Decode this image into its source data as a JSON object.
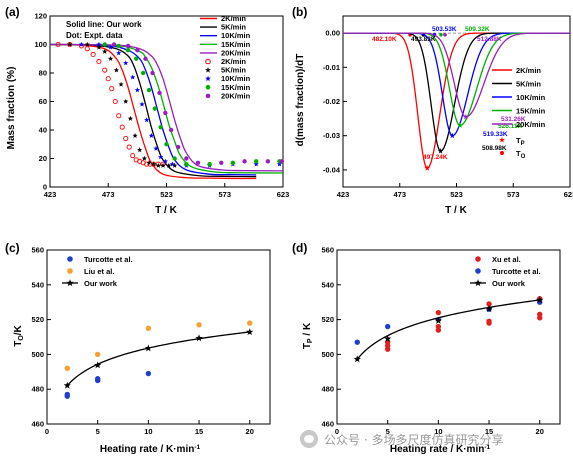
{
  "panels": {
    "a": {
      "letter": "(a)",
      "ylabel": "Mass fraction (%)",
      "xlabel": "T / K",
      "note_line1": "Solid line: Our work",
      "note_line2": "Dot: Expt. data",
      "legend": [
        "2K/min",
        "5K/min",
        "10K/min",
        "15K/min",
        "20K/min",
        "2K/min",
        "5K/min",
        "10K/min",
        "15K/min",
        "20K/min"
      ]
    },
    "b": {
      "letter": "(b)",
      "ylabel": "d(mass fraction)/dT",
      "xlabel": "T / K",
      "legend": [
        "2K/min",
        "5K/min",
        "10K/min",
        "15K/min",
        "20K/min"
      ],
      "legend_tp": "T",
      "legend_tp_sub": "P",
      "legend_to": "T",
      "legend_to_sub": "O",
      "annotations_to": [
        "482.10K",
        "493.83K",
        "503.53K",
        "509.32K",
        "512.88K"
      ],
      "annotations_tp": [
        "497.24K",
        "508.98K",
        "519.33K",
        "526.11K",
        "531.26K"
      ]
    },
    "c": {
      "letter": "(c)",
      "ylabel": "T",
      "ylabel_sub": "O",
      "ylabel_unit": "/K",
      "xlabel": "Heating rate / K·min",
      "xlabel_sup": "-1",
      "legend": [
        "Turcotte et al.",
        "Liu et al.",
        "Our work"
      ]
    },
    "d": {
      "letter": "(d)",
      "ylabel": "T",
      "ylabel_sub": "P",
      "ylabel_unit": " / K",
      "xlabel": "Heating rate / K·min",
      "xlabel_sup": "-1",
      "legend": [
        "Xu et al.",
        "Turcotte et al.",
        "Our work"
      ]
    }
  },
  "colors": {
    "2K": "#ff0000",
    "5K": "#000000",
    "10K": "#0000ff",
    "15K": "#00b000",
    "20K": "#9b1fbf",
    "blue_marker": "#1f3fd0",
    "orange_marker": "#f5a030",
    "red_marker": "#e02020"
  },
  "watermark": "公众号 · 多场多尺度仿真研究分享",
  "chart_data": [
    {
      "panel": "a",
      "type": "line",
      "xlabel": "T / K",
      "ylabel": "Mass fraction (%)",
      "xlim": [
        423,
        623
      ],
      "ylim": [
        0,
        120
      ],
      "xticks": [
        423,
        473,
        523,
        573,
        623
      ],
      "yticks": [
        0,
        20,
        40,
        60,
        80,
        100,
        120
      ],
      "series": [
        {
          "name": "2K/min",
          "kind": "model",
          "color": "#ff0000",
          "x": [
            423,
            450,
            470,
            480,
            485,
            490,
            495,
            500,
            505,
            510,
            520,
            540,
            560,
            580,
            600
          ],
          "values": [
            100,
            99.5,
            97,
            90,
            82,
            70,
            55,
            40,
            27,
            17,
            9,
            6.5,
            6.2,
            6,
            6
          ]
        },
        {
          "name": "5K/min",
          "kind": "model",
          "color": "#000000",
          "x": [
            423,
            460,
            480,
            490,
            495,
            500,
            505,
            510,
            515,
            520,
            530,
            550,
            570,
            600
          ],
          "values": [
            100,
            99.5,
            97,
            92,
            85,
            73,
            58,
            42,
            29,
            19,
            11,
            8,
            7.5,
            7.3
          ]
        },
        {
          "name": "10K/min",
          "kind": "model",
          "color": "#0000ff",
          "x": [
            423,
            470,
            490,
            500,
            505,
            510,
            515,
            520,
            525,
            530,
            540,
            560,
            580,
            600
          ],
          "values": [
            100,
            99.5,
            96,
            90,
            82,
            70,
            55,
            40,
            28,
            19,
            12,
            9,
            8.7,
            8.5
          ]
        },
        {
          "name": "15K/min",
          "kind": "model",
          "color": "#00b000",
          "x": [
            423,
            480,
            500,
            505,
            510,
            515,
            520,
            525,
            530,
            535,
            545,
            565,
            585,
            623
          ],
          "values": [
            100,
            99.3,
            95,
            91,
            84,
            73,
            59,
            44,
            32,
            22,
            14,
            10.5,
            10,
            9.8
          ]
        },
        {
          "name": "20K/min",
          "kind": "model",
          "color": "#9b1fbf",
          "x": [
            423,
            480,
            500,
            510,
            515,
            520,
            525,
            530,
            535,
            540,
            550,
            570,
            590,
            623
          ],
          "values": [
            100,
            99.5,
            97,
            92,
            86,
            76,
            62,
            47,
            34,
            24,
            15,
            12,
            11.5,
            11.3
          ]
        },
        {
          "name": "2K/min",
          "kind": "expt",
          "marker": "circle-open",
          "color": "#ff0000",
          "x": [
            430,
            440,
            450,
            455,
            460,
            465,
            470,
            473,
            476,
            479,
            482,
            485,
            488,
            491,
            494,
            497,
            500,
            503,
            506,
            509,
            512,
            516,
            520
          ],
          "values": [
            100,
            100,
            99,
            97,
            93,
            88,
            82,
            76,
            69,
            60,
            50,
            42,
            34,
            28,
            22,
            19,
            18,
            17,
            16,
            16,
            16,
            16,
            16
          ]
        },
        {
          "name": "5K/min",
          "kind": "expt",
          "marker": "star",
          "color": "#000000",
          "x": [
            440,
            455,
            465,
            470,
            475,
            480,
            484,
            488,
            492,
            496,
            500,
            504,
            508,
            512,
            516,
            520,
            525,
            530
          ],
          "values": [
            100,
            100,
            98,
            95,
            90,
            82,
            72,
            60,
            48,
            36,
            26,
            20,
            17,
            16,
            15,
            15,
            15,
            15
          ]
        },
        {
          "name": "10K/min",
          "kind": "expt",
          "marker": "star",
          "color": "#0000ff",
          "x": [
            450,
            465,
            475,
            482,
            488,
            494,
            498,
            502,
            506,
            510,
            514,
            518,
            522,
            528,
            540,
            560,
            580,
            600,
            620
          ],
          "values": [
            100,
            100,
            98,
            94,
            87,
            77,
            68,
            58,
            47,
            36,
            27,
            21,
            18,
            16,
            15,
            15,
            16,
            16,
            16
          ]
        },
        {
          "name": "15K/min",
          "kind": "expt",
          "marker": "circle-filled",
          "color": "#00b000",
          "x": [
            470,
            482,
            490,
            497,
            503,
            508,
            513,
            518,
            523,
            530,
            540,
            560,
            580,
            600,
            620
          ],
          "values": [
            100,
            99,
            96,
            90,
            80,
            68,
            55,
            42,
            30,
            20,
            16,
            16,
            17,
            18,
            18
          ]
        },
        {
          "name": "20K/min",
          "kind": "expt",
          "marker": "circle-filled",
          "color": "#9b1fbf",
          "x": [
            478,
            490,
            498,
            505,
            511,
            517,
            522,
            527,
            533,
            540,
            550,
            570,
            590,
            610,
            622
          ],
          "values": [
            100,
            99,
            96,
            90,
            80,
            66,
            52,
            40,
            28,
            20,
            17,
            17,
            18,
            18,
            18
          ]
        }
      ]
    },
    {
      "panel": "b",
      "type": "line",
      "xlabel": "T / K",
      "ylabel": "d(mass fraction)/dT",
      "xlim": [
        423,
        623
      ],
      "ylim": [
        -0.045,
        0.005
      ],
      "xticks": [
        423,
        473,
        523,
        573,
        623
      ],
      "yticks": [
        0.0,
        -0.01,
        -0.02,
        -0.03,
        -0.04
      ],
      "series": [
        {
          "name": "2K/min",
          "color": "#ff0000",
          "onset": 482.1,
          "peak": 497.24,
          "depth": -0.0395
        },
        {
          "name": "5K/min",
          "color": "#000000",
          "onset": 493.83,
          "peak": 508.98,
          "depth": -0.0345
        },
        {
          "name": "10K/min",
          "color": "#0000ff",
          "onset": 503.53,
          "peak": 519.33,
          "depth": -0.03
        },
        {
          "name": "15K/min",
          "color": "#00b000",
          "onset": 509.32,
          "peak": 526.11,
          "depth": -0.027
        },
        {
          "name": "20K/min",
          "color": "#9b1fbf",
          "onset": 512.88,
          "peak": 531.26,
          "depth": -0.0245
        }
      ]
    },
    {
      "panel": "c",
      "type": "scatter",
      "xlabel": "Heating rate / K·min-1",
      "ylabel": "TO/K",
      "xlim": [
        0,
        22
      ],
      "ylim": [
        460,
        560
      ],
      "xticks": [
        0,
        5,
        10,
        15,
        20
      ],
      "yticks": [
        460,
        480,
        500,
        520,
        540,
        560
      ],
      "series": [
        {
          "name": "Turcotte et al.",
          "marker": "circle",
          "color": "#1f3fd0",
          "x": [
            2,
            2,
            5,
            5,
            10
          ],
          "values": [
            476,
            477,
            485,
            486,
            489
          ]
        },
        {
          "name": "Liu et al.",
          "marker": "circle",
          "color": "#f5a030",
          "x": [
            2,
            5,
            10,
            15,
            20
          ],
          "values": [
            492,
            500,
            515,
            517,
            518
          ]
        },
        {
          "name": "Our work",
          "marker": "star-line",
          "color": "#000000",
          "x": [
            2,
            5,
            10,
            15,
            20
          ],
          "values": [
            482.1,
            493.83,
            503.53,
            509.32,
            512.88
          ]
        }
      ]
    },
    {
      "panel": "d",
      "type": "scatter",
      "xlabel": "Heating rate / K·min-1",
      "ylabel": "TP / K",
      "xlim": [
        0,
        22
      ],
      "ylim": [
        460,
        560
      ],
      "xticks": [
        0,
        5,
        10,
        15,
        20
      ],
      "yticks": [
        460,
        480,
        500,
        520,
        540,
        560
      ],
      "series": [
        {
          "name": "Xu et al.",
          "marker": "circle",
          "color": "#e02020",
          "x": [
            5,
            5,
            5,
            10,
            10,
            10,
            15,
            15,
            15,
            20,
            20,
            20
          ],
          "values": [
            503,
            505,
            507,
            514,
            516,
            524,
            518,
            519,
            529,
            521,
            523,
            532
          ]
        },
        {
          "name": "Turcotte et al.",
          "marker": "circle",
          "color": "#1f3fd0",
          "x": [
            2,
            5,
            10,
            15,
            20
          ],
          "values": [
            507,
            516,
            520,
            526,
            530
          ]
        },
        {
          "name": "Our work",
          "marker": "star-line",
          "color": "#000000",
          "x": [
            2,
            5,
            10,
            15,
            20
          ],
          "values": [
            497.24,
            508.98,
            519.33,
            526.11,
            531.26
          ]
        }
      ]
    }
  ]
}
